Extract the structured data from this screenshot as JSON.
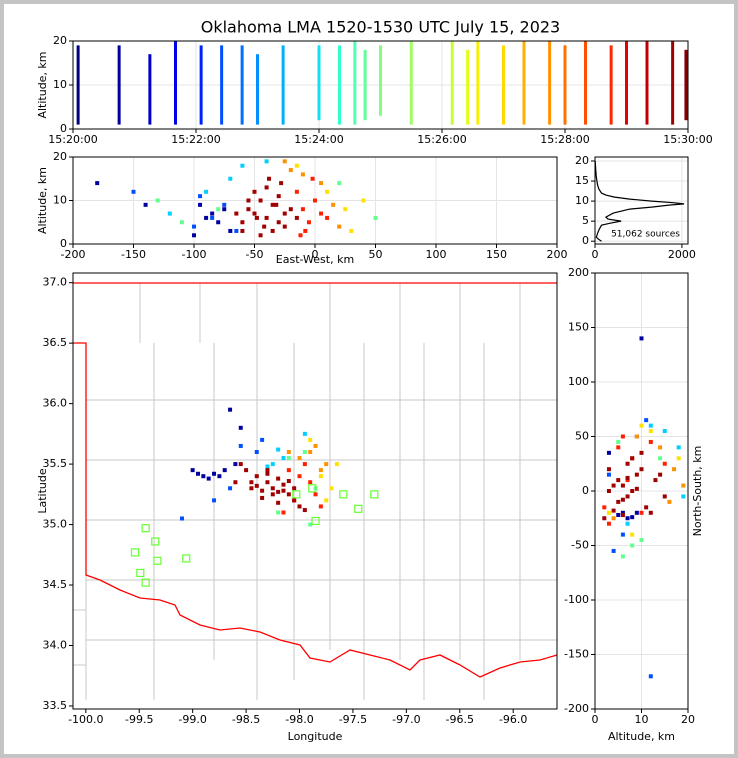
{
  "chart_data": [
    {
      "type": "range",
      "title": "Oklahoma LMA 1520-1530 UTC July 15, 2023",
      "ylabel": "Altitude, km",
      "xlim": [
        "15:20:00",
        "15:30:00"
      ],
      "xticks": [
        "15:20:00",
        "15:22:00",
        "15:24:00",
        "15:26:00",
        "15:28:00",
        "15:30:00"
      ],
      "ylim": [
        0,
        20
      ],
      "yticks": [
        0,
        10,
        20
      ],
      "grid": true,
      "x": [
        "15:20:05",
        "15:20:45",
        "15:21:15",
        "15:21:40",
        "15:22:05",
        "15:22:25",
        "15:22:45",
        "15:23:00",
        "15:23:25",
        "15:24:00",
        "15:24:20",
        "15:24:35",
        "15:24:45",
        "15:25:00",
        "15:25:30",
        "15:26:10",
        "15:26:25",
        "15:26:35",
        "15:27:00",
        "15:27:20",
        "15:27:45",
        "15:28:00",
        "15:28:20",
        "15:28:45",
        "15:29:00",
        "15:29:20",
        "15:29:45",
        "15:29:58"
      ],
      "y_low": [
        1,
        1,
        1,
        1,
        1,
        1,
        1,
        1,
        1,
        2,
        1,
        1,
        2,
        3,
        1,
        1,
        1,
        1,
        1,
        1,
        1,
        1,
        1,
        1,
        1,
        1,
        1,
        2
      ],
      "y_high": [
        19,
        19,
        17,
        20,
        19,
        19,
        19,
        17,
        19,
        19,
        19,
        20,
        18,
        19,
        20,
        20,
        18,
        20,
        19,
        20,
        20,
        19,
        20,
        19,
        20,
        20,
        20,
        18
      ],
      "colors": [
        "#00007f",
        "#0000a0",
        "#0000c8",
        "#0000e8",
        "#0020ff",
        "#0050ff",
        "#0070ff",
        "#0090ff",
        "#00b0ff",
        "#10e0f0",
        "#30ffd0",
        "#50ffb0",
        "#60ff98",
        "#80ff80",
        "#a0ff60",
        "#c8ff30",
        "#e0ff18",
        "#f8f000",
        "#ffd800",
        "#ffb000",
        "#ff9000",
        "#ff7000",
        "#ff5000",
        "#ff2800",
        "#e80000",
        "#c00000",
        "#a00000",
        "#800000"
      ]
    },
    {
      "type": "scatter",
      "xlabel": "East-West, km",
      "ylabel": "Altitude, km",
      "xlim": [
        -200,
        200
      ],
      "xticks": [
        -200,
        -150,
        -100,
        -50,
        0,
        50,
        100,
        150,
        200
      ],
      "ylim": [
        0,
        20
      ],
      "yticks": [
        0,
        10,
        20
      ],
      "grid": true,
      "series": [
        {
          "color": "#0000a0",
          "x": [
            -90,
            -85,
            -80,
            -75,
            -95,
            -70,
            -100,
            -180,
            -140
          ],
          "y": [
            6,
            7,
            5,
            8,
            9,
            3,
            2,
            14,
            9
          ]
        },
        {
          "color": "#0050ff",
          "x": [
            -75,
            -85,
            -95,
            -65,
            -100,
            -150
          ],
          "y": [
            9,
            6,
            11,
            3,
            4,
            12
          ]
        },
        {
          "color": "#00d0ff",
          "x": [
            -70,
            -90,
            -60,
            -40,
            -120
          ],
          "y": [
            15,
            12,
            18,
            19,
            7
          ]
        },
        {
          "color": "#60ff90",
          "x": [
            -80,
            -110,
            -130,
            20,
            50
          ],
          "y": [
            8,
            5,
            10,
            14,
            6
          ]
        },
        {
          "color": "#ffe000",
          "x": [
            10,
            25,
            -15,
            30,
            40
          ],
          "y": [
            12,
            8,
            18,
            3,
            10
          ]
        },
        {
          "color": "#ff9000",
          "x": [
            -20,
            -10,
            5,
            15,
            -25,
            20
          ],
          "y": [
            17,
            16,
            14,
            9,
            19,
            4
          ]
        },
        {
          "color": "#ff2000",
          "x": [
            -10,
            -5,
            0,
            -15,
            -8,
            5,
            -2,
            -12,
            10
          ],
          "y": [
            8,
            5,
            10,
            12,
            3,
            7,
            15,
            2,
            6
          ]
        },
        {
          "color": "#a00000",
          "x": [
            -60,
            -55,
            -50,
            -45,
            -40,
            -35,
            -30,
            -25,
            -20,
            -50,
            -40,
            -30,
            -60,
            -45,
            -35,
            -25,
            -55,
            -38,
            -28,
            -48,
            -42,
            -65,
            -15,
            -32
          ],
          "y": [
            5,
            8,
            7,
            10,
            6,
            9,
            5,
            7,
            8,
            12,
            13,
            11,
            3,
            2,
            3,
            4,
            10,
            15,
            14,
            6,
            4,
            7,
            6,
            9
          ]
        }
      ]
    },
    {
      "type": "line",
      "annotation": "51,062 sources",
      "xlim": [
        0,
        2140
      ],
      "xticks": [
        0,
        2000
      ],
      "ylim": [
        -0.7,
        21
      ],
      "yticks": [
        0,
        5,
        10,
        15,
        20
      ],
      "grid": true,
      "color": "#000000",
      "x": [
        150,
        80,
        30,
        60,
        100,
        150,
        350,
        600,
        300,
        250,
        420,
        800,
        1300,
        1700,
        2050,
        1800,
        1300,
        800,
        450,
        250,
        150,
        90,
        60,
        30,
        15,
        5
      ],
      "y": [
        0,
        0.5,
        1,
        2,
        3,
        4,
        4.5,
        5,
        5.5,
        6,
        7,
        8,
        8.5,
        9,
        9.3,
        9.6,
        10,
        10.5,
        11,
        11.5,
        12,
        13,
        14,
        16,
        18,
        20
      ]
    },
    {
      "type": "scatter",
      "xlabel": "Longitude",
      "ylabel": "Latitude",
      "xlim": [
        -100.12,
        -95.59
      ],
      "xticks": [
        {
          "value": -100,
          "label": "-100.0"
        },
        -99.5,
        {
          "value": -99,
          "label": "-99.0"
        },
        -98.5,
        {
          "value": -98,
          "label": "-98.0"
        },
        -97.5,
        {
          "value": -97,
          "label": "-97.0"
        },
        -96.5,
        {
          "value": -96,
          "label": "-96.0"
        }
      ],
      "ylim": [
        33.475,
        37.08
      ],
      "yticks": [
        33.5,
        {
          "value": 34,
          "label": "34.0"
        },
        34.5,
        {
          "value": 35,
          "label": "35.0"
        },
        35.5,
        {
          "value": 36,
          "label": "36.0"
        },
        36.5,
        {
          "value": 37,
          "label": "37.0"
        }
      ],
      "grid": false,
      "series": [
        {
          "color": "#0000a0",
          "x": [
            -98.95,
            -98.9,
            -98.85,
            -98.8,
            -98.75,
            -98.7,
            -98.6,
            -98.65,
            -99.0,
            -98.55
          ],
          "y": [
            35.42,
            35.4,
            35.38,
            35.42,
            35.4,
            35.45,
            35.5,
            35.95,
            35.45,
            35.8
          ]
        },
        {
          "color": "#0050ff",
          "x": [
            -98.4,
            -98.55,
            -98.35,
            -98.65,
            -98.8,
            -99.1
          ],
          "y": [
            35.6,
            35.65,
            35.7,
            35.3,
            35.2,
            35.05
          ]
        },
        {
          "color": "#00d0ff",
          "x": [
            -98.25,
            -98.3,
            -98.2,
            -98.15,
            -97.95
          ],
          "y": [
            35.5,
            35.48,
            35.62,
            35.55,
            35.75
          ]
        },
        {
          "color": "#60ff90",
          "x": [
            -98.1,
            -97.95,
            -97.85,
            -98.2,
            -97.9
          ],
          "y": [
            35.55,
            35.6,
            35.3,
            35.1,
            35.0
          ]
        },
        {
          "color": "#ffe000",
          "x": [
            -97.7,
            -97.75,
            -97.65,
            -97.8,
            -97.9
          ],
          "y": [
            35.3,
            35.2,
            35.5,
            35.4,
            35.7
          ]
        },
        {
          "color": "#ff9000",
          "x": [
            -98.0,
            -97.9,
            -97.8,
            -98.1,
            -97.75,
            -97.85
          ],
          "y": [
            35.55,
            35.6,
            35.45,
            35.6,
            35.5,
            35.65
          ]
        },
        {
          "color": "#ff2000",
          "x": [
            -98.0,
            -97.9,
            -97.85,
            -98.1,
            -97.95,
            -98.05,
            -97.8,
            -98.15
          ],
          "y": [
            35.4,
            35.35,
            35.25,
            35.45,
            35.5,
            35.2,
            35.15,
            35.1
          ]
        },
        {
          "color": "#a00000",
          "x": [
            -98.45,
            -98.4,
            -98.35,
            -98.3,
            -98.25,
            -98.2,
            -98.15,
            -98.1,
            -98.05,
            -98.0,
            -98.5,
            -98.55,
            -98.4,
            -98.3,
            -98.2,
            -98.1,
            -98.35,
            -98.25,
            -98.15,
            -98.45,
            -98.05,
            -97.95,
            -98.6,
            -98.3,
            -98.2
          ],
          "y": [
            35.3,
            35.32,
            35.28,
            35.35,
            35.3,
            35.27,
            35.33,
            35.25,
            35.2,
            35.15,
            35.45,
            35.5,
            35.4,
            35.42,
            35.38,
            35.36,
            35.22,
            35.25,
            35.28,
            35.35,
            35.3,
            35.12,
            35.35,
            35.45,
            35.18
          ]
        },
        {
          "color": "#66ff33",
          "marker": "open-square",
          "x": [
            -99.44,
            -99.35,
            -99.54,
            -99.33,
            -99.49,
            -99.44,
            -99.06,
            -98.03,
            -97.88,
            -97.59,
            -97.45,
            -97.3,
            -97.85
          ],
          "y": [
            34.97,
            34.86,
            34.77,
            34.7,
            34.6,
            34.52,
            34.72,
            35.25,
            35.3,
            35.25,
            35.13,
            35.25,
            35.03
          ]
        }
      ]
    },
    {
      "type": "scatter",
      "xlabel": "Altitude, km",
      "ylabel": "North-South, km",
      "xlim": [
        0,
        20
      ],
      "xticks": [
        0,
        10,
        20
      ],
      "ylim": [
        -200,
        200
      ],
      "yticks": [
        -200,
        -150,
        -100,
        -50,
        0,
        50,
        100,
        150,
        200
      ],
      "grid": true,
      "series": [
        {
          "color": "#0000a0",
          "x": [
            6,
            7,
            5,
            8,
            9,
            3,
            10
          ],
          "y": [
            -20,
            -25,
            -22,
            -24,
            -20,
            35,
            140
          ]
        },
        {
          "color": "#0050ff",
          "x": [
            9,
            6,
            11,
            3,
            4,
            12
          ],
          "y": [
            50,
            -40,
            65,
            15,
            -55,
            -170
          ]
        },
        {
          "color": "#00d0ff",
          "x": [
            15,
            12,
            18,
            19,
            7
          ],
          "y": [
            55,
            60,
            40,
            -5,
            -30
          ]
        },
        {
          "color": "#60ff90",
          "x": [
            8,
            5,
            10,
            14,
            6
          ],
          "y": [
            -50,
            45,
            -45,
            30,
            -60
          ]
        },
        {
          "color": "#ffe000",
          "x": [
            12,
            8,
            18,
            3,
            10
          ],
          "y": [
            55,
            -40,
            30,
            -20,
            60
          ]
        },
        {
          "color": "#ff9000",
          "x": [
            17,
            16,
            14,
            9,
            19,
            4
          ],
          "y": [
            20,
            -10,
            40,
            50,
            5,
            -25
          ]
        },
        {
          "color": "#ff2000",
          "x": [
            8,
            5,
            10,
            12,
            3,
            7,
            15,
            2,
            6
          ],
          "y": [
            30,
            40,
            -20,
            45,
            -30,
            10,
            25,
            -15,
            50
          ]
        },
        {
          "color": "#a00000",
          "x": [
            5,
            8,
            7,
            10,
            6,
            9,
            5,
            7,
            8,
            12,
            13,
            11,
            3,
            2,
            3,
            4,
            10,
            15,
            14,
            6,
            4,
            7,
            6,
            9
          ],
          "y": [
            10,
            0,
            -5,
            20,
            5,
            15,
            -10,
            25,
            30,
            -20,
            10,
            -15,
            0,
            -25,
            20,
            5,
            35,
            -5,
            15,
            -22,
            -18,
            12,
            -8,
            2
          ]
        }
      ]
    }
  ]
}
